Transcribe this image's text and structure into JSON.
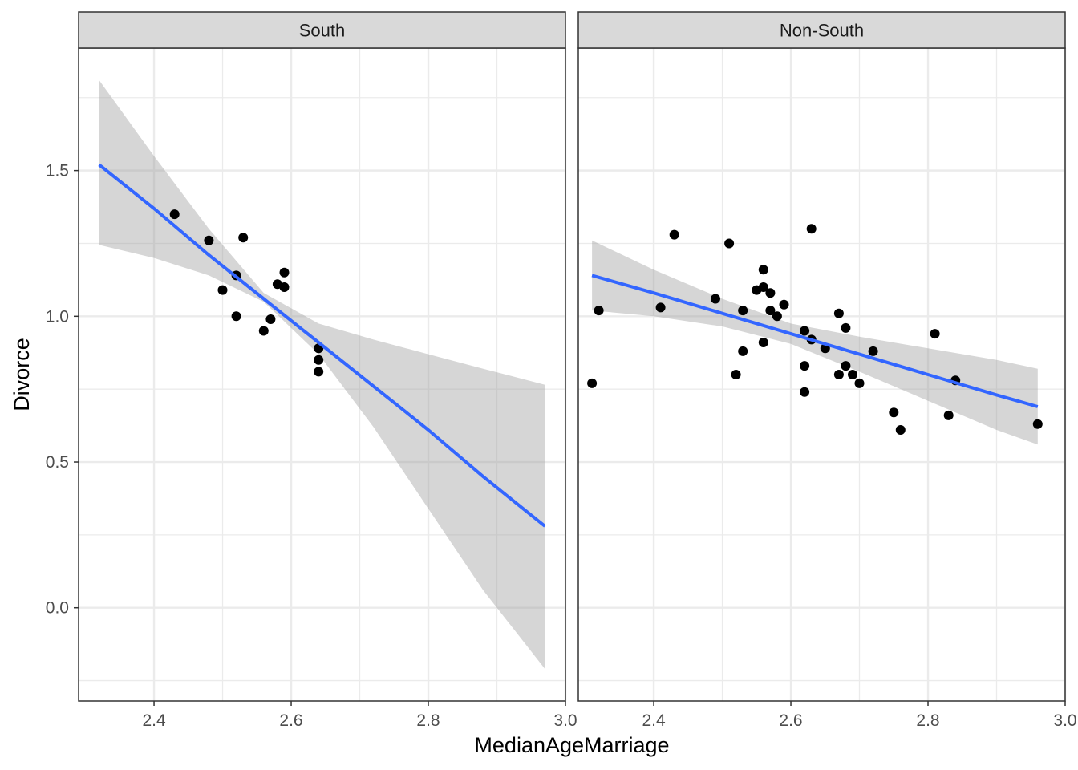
{
  "chart_data": {
    "type": "scatter",
    "xlabel": "MedianAgeMarriage",
    "ylabel": "Divorce",
    "xlim": [
      2.29,
      3.0
    ],
    "ylim": [
      -0.32,
      1.92
    ],
    "x_ticks": [
      2.4,
      2.6,
      2.8,
      3.0
    ],
    "x_tick_labels": [
      "2.4",
      "2.6",
      "2.8",
      "3.0"
    ],
    "y_ticks": [
      0.0,
      0.5,
      1.0,
      1.5
    ],
    "y_tick_labels": [
      "0.0",
      "0.5",
      "1.0",
      "1.5"
    ],
    "grid": true,
    "facets": [
      {
        "label": "South",
        "points": [
          {
            "x": 2.43,
            "y": 1.35
          },
          {
            "x": 2.48,
            "y": 1.26
          },
          {
            "x": 2.53,
            "y": 1.27
          },
          {
            "x": 2.52,
            "y": 1.14
          },
          {
            "x": 2.5,
            "y": 1.09
          },
          {
            "x": 2.52,
            "y": 1.0
          },
          {
            "x": 2.59,
            "y": 1.15
          },
          {
            "x": 2.58,
            "y": 1.11
          },
          {
            "x": 2.59,
            "y": 1.1
          },
          {
            "x": 2.57,
            "y": 0.99
          },
          {
            "x": 2.56,
            "y": 0.95
          },
          {
            "x": 2.64,
            "y": 0.89
          },
          {
            "x": 2.64,
            "y": 0.85
          },
          {
            "x": 2.64,
            "y": 0.81
          }
        ],
        "fit": {
          "x": [
            2.32,
            2.4,
            2.48,
            2.56,
            2.64,
            2.72,
            2.8,
            2.88,
            2.97
          ],
          "y": [
            1.52,
            1.37,
            1.21,
            1.06,
            0.91,
            0.76,
            0.61,
            0.45,
            0.28
          ],
          "lower": [
            1.245,
            1.2,
            1.14,
            1.05,
            0.87,
            0.62,
            0.34,
            0.06,
            -0.21
          ],
          "upper": [
            1.81,
            1.55,
            1.3,
            1.08,
            0.975,
            0.92,
            0.87,
            0.82,
            0.765
          ]
        }
      },
      {
        "label": "Non-South",
        "points": [
          {
            "x": 2.31,
            "y": 0.77
          },
          {
            "x": 2.32,
            "y": 1.02
          },
          {
            "x": 2.41,
            "y": 1.03
          },
          {
            "x": 2.43,
            "y": 1.28
          },
          {
            "x": 2.51,
            "y": 1.25
          },
          {
            "x": 2.49,
            "y": 1.06
          },
          {
            "x": 2.53,
            "y": 1.02
          },
          {
            "x": 2.53,
            "y": 0.88
          },
          {
            "x": 2.52,
            "y": 0.8
          },
          {
            "x": 2.55,
            "y": 1.09
          },
          {
            "x": 2.56,
            "y": 1.16
          },
          {
            "x": 2.56,
            "y": 1.1
          },
          {
            "x": 2.57,
            "y": 1.08
          },
          {
            "x": 2.57,
            "y": 1.02
          },
          {
            "x": 2.58,
            "y": 1.0
          },
          {
            "x": 2.59,
            "y": 1.04
          },
          {
            "x": 2.56,
            "y": 0.91
          },
          {
            "x": 2.63,
            "y": 1.3
          },
          {
            "x": 2.62,
            "y": 0.95
          },
          {
            "x": 2.63,
            "y": 0.92
          },
          {
            "x": 2.62,
            "y": 0.83
          },
          {
            "x": 2.62,
            "y": 0.74
          },
          {
            "x": 2.65,
            "y": 0.89
          },
          {
            "x": 2.67,
            "y": 1.01
          },
          {
            "x": 2.68,
            "y": 0.96
          },
          {
            "x": 2.68,
            "y": 0.83
          },
          {
            "x": 2.67,
            "y": 0.8
          },
          {
            "x": 2.69,
            "y": 0.8
          },
          {
            "x": 2.7,
            "y": 0.77
          },
          {
            "x": 2.72,
            "y": 0.88
          },
          {
            "x": 2.75,
            "y": 0.67
          },
          {
            "x": 2.76,
            "y": 0.61
          },
          {
            "x": 2.81,
            "y": 0.94
          },
          {
            "x": 2.83,
            "y": 0.66
          },
          {
            "x": 2.84,
            "y": 0.78
          },
          {
            "x": 2.96,
            "y": 0.63
          }
        ],
        "fit": {
          "x": [
            2.31,
            2.4,
            2.5,
            2.6,
            2.7,
            2.8,
            2.9,
            2.96
          ],
          "y": [
            1.14,
            1.08,
            1.01,
            0.94,
            0.87,
            0.8,
            0.73,
            0.69
          ],
          "lower": [
            1.02,
            1.0,
            0.965,
            0.905,
            0.81,
            0.71,
            0.61,
            0.56
          ],
          "upper": [
            1.26,
            1.16,
            1.06,
            0.975,
            0.93,
            0.89,
            0.85,
            0.82
          ]
        }
      }
    ],
    "colors": {
      "point": "#000000",
      "fit_line": "#3366FF",
      "ribbon": "#999999",
      "strip_fill": "#D9D9D9",
      "grid": "#EBEBEB",
      "axis_text": "#4D4D4D"
    }
  }
}
